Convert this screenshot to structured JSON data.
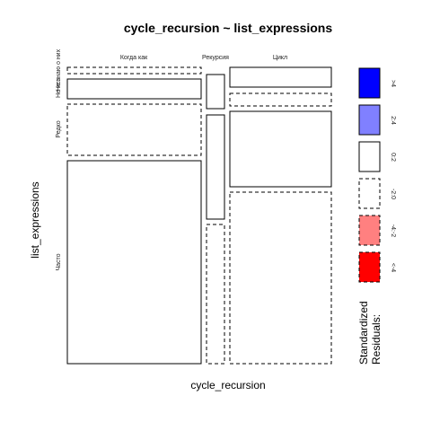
{
  "chart_data": {
    "type": "mosaic",
    "title": "cycle_recursion ~ list_expressions",
    "xlabel": "cycle_recursion",
    "ylabel": "list_expressions",
    "columns": [
      "Когда как",
      "Рекурсия",
      "Цикл"
    ],
    "rows": [
      "Не знаю о них",
      "Не исп.",
      "Редко",
      "Часто"
    ],
    "column_shares": [
      0.545,
      0.08,
      0.415
    ],
    "cells": [
      [
        {
          "share": 0.03,
          "residual": "-2:0"
        },
        {
          "share": 0.0,
          "residual": "0:2"
        },
        {
          "share": 0.0,
          "residual": "0:2"
        }
      ],
      [
        {
          "share": 0.1,
          "residual": "0:2"
        },
        {
          "share": 0.15,
          "residual": "0:2"
        },
        {
          "share": 0.09,
          "residual": "0:2"
        }
      ],
      [
        {
          "share": 0.25,
          "residual": "-2:0"
        },
        {
          "share": 0.5,
          "residual": "0:2"
        },
        {
          "share": 0.39,
          "residual": "0:2"
        }
      ],
      [
        {
          "share": 0.62,
          "residual": "0:2"
        },
        {
          "share": 0.35,
          "residual": "-2:0"
        },
        {
          "share": 0.52,
          "residual": "-2:0"
        }
      ]
    ],
    "legend": {
      "title_line1": "Standardized",
      "title_line2": "Residuals:",
      "entries": [
        {
          "label": ">4",
          "fill": "#0000ff",
          "dashed": false
        },
        {
          "label": "2:4",
          "fill": "#8080ff",
          "dashed": false
        },
        {
          "label": "0:2",
          "fill": "#ffffff",
          "dashed": false
        },
        {
          "label": "-2:0",
          "fill": "#ffffff",
          "dashed": true
        },
        {
          "label": "-4:-2",
          "fill": "#ff8080",
          "dashed": true
        },
        {
          "label": "<-4",
          "fill": "#ff0000",
          "dashed": true
        }
      ]
    }
  }
}
